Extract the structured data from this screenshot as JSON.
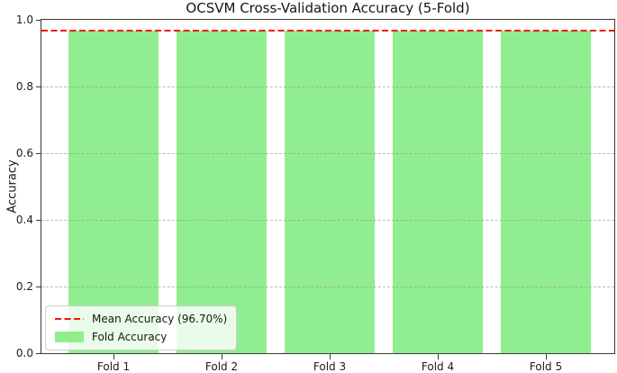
{
  "chart_data": {
    "type": "bar",
    "title": "OCSVM Cross-Validation Accuracy (5-Fold)",
    "categories": [
      "Fold 1",
      "Fold 2",
      "Fold 3",
      "Fold 4",
      "Fold 5"
    ],
    "values": [
      0.967,
      0.967,
      0.967,
      0.967,
      0.967
    ],
    "xlabel": "",
    "ylabel": "Accuracy",
    "ylim": [
      0.0,
      1.0
    ],
    "yticks": [
      0.0,
      0.2,
      0.4,
      0.6,
      0.8,
      1.0
    ],
    "ytick_labels": [
      "0.0",
      "0.2",
      "0.4",
      "0.6",
      "0.8",
      "1.0"
    ],
    "grid": {
      "axis": "y",
      "style": "dashed"
    },
    "bar_color": "#90ee90",
    "mean_line": {
      "value": 0.967,
      "color": "#f51414",
      "style": "dashed",
      "width": 2
    },
    "legend": {
      "position": "lower-left",
      "entries": [
        {
          "type": "line",
          "label": "Mean Accuracy (96.70%)",
          "color": "#f51414"
        },
        {
          "type": "patch",
          "label": "Fold Accuracy",
          "color": "#90ee90"
        }
      ]
    }
  }
}
